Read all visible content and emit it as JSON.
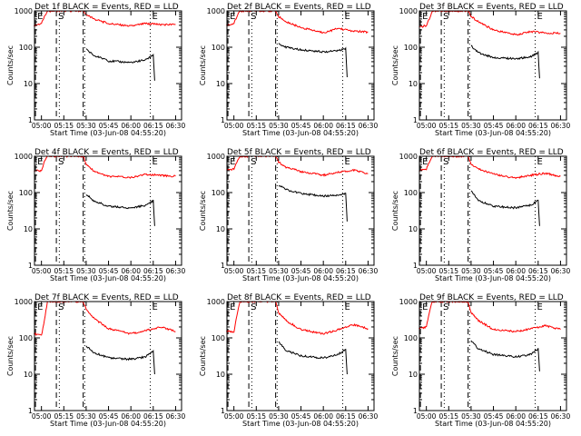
{
  "ylabel": "Counts/sec",
  "xlabel": "Start Time (03-Jun-08 04:55:20)",
  "x_ticks": [
    "05:00",
    "05:15",
    "05:30",
    "05:45",
    "06:00",
    "06:15",
    "06:30"
  ],
  "y_ticks": [
    "1",
    "10",
    "100",
    "1000"
  ],
  "colors": {
    "events": "#000000",
    "lld": "#ff0000",
    "frame": "#000000"
  },
  "chart_data": [
    {
      "type": "line",
      "title": "Det 1f BLACK = Events, RED = LLD",
      "xlim": [
        "04:55:20",
        "06:34"
      ],
      "ylim": [
        1,
        1000
      ],
      "yscale": "log",
      "markers": [
        {
          "label": "E",
          "time": "04:56",
          "style": "dashed"
        },
        {
          "label": "S",
          "time": "05:10",
          "style": "dashed"
        },
        {
          "label": "",
          "time": "05:28",
          "style": "dashed"
        },
        {
          "label": "",
          "time": "05:12",
          "style": "dotted"
        },
        {
          "label": "",
          "time": "05:29",
          "style": "dotted"
        },
        {
          "label": "E",
          "time": "06:13",
          "style": "dotted"
        }
      ],
      "series": [
        {
          "name": "LLD",
          "color": "#ff0000",
          "x": [
            "04:55",
            "05:00",
            "05:02",
            "05:04",
            "05:28",
            "05:30",
            "05:35",
            "05:45",
            "06:00",
            "06:10",
            "06:20",
            "06:30"
          ],
          "values": [
            400,
            450,
            700,
            1000,
            1000,
            800,
            600,
            450,
            380,
            450,
            420,
            420
          ]
        },
        {
          "name": "Events",
          "color": "#000000",
          "x": [
            "05:30",
            "05:31",
            "05:35",
            "05:45",
            "06:00",
            "06:10",
            "06:15",
            "06:16"
          ],
          "values": [
            90,
            85,
            60,
            42,
            38,
            45,
            60,
            12
          ]
        }
      ]
    },
    {
      "type": "line",
      "title": "Det 2f BLACK = Events, RED = LLD",
      "xlim": [
        "04:55:20",
        "06:34"
      ],
      "ylim": [
        1,
        1000
      ],
      "yscale": "log",
      "markers": [
        {
          "label": "E",
          "time": "04:56",
          "style": "dashed"
        },
        {
          "label": "S",
          "time": "05:10",
          "style": "dashed"
        },
        {
          "label": "",
          "time": "05:28",
          "style": "dashed"
        },
        {
          "label": "",
          "time": "05:12",
          "style": "dotted"
        },
        {
          "label": "",
          "time": "05:29",
          "style": "dotted"
        },
        {
          "label": "E",
          "time": "06:13",
          "style": "dotted"
        }
      ],
      "series": [
        {
          "name": "LLD",
          "color": "#ff0000",
          "x": [
            "04:55",
            "05:00",
            "05:02",
            "05:04",
            "05:28",
            "05:30",
            "05:35",
            "05:45",
            "06:00",
            "06:10",
            "06:20",
            "06:30"
          ],
          "values": [
            400,
            450,
            700,
            1000,
            1000,
            700,
            500,
            350,
            250,
            330,
            280,
            260
          ]
        },
        {
          "name": "Events",
          "color": "#000000",
          "x": [
            "05:30",
            "05:31",
            "05:35",
            "05:45",
            "06:00",
            "06:10",
            "06:15",
            "06:16"
          ],
          "values": [
            130,
            120,
            100,
            85,
            75,
            80,
            90,
            15
          ]
        }
      ]
    },
    {
      "type": "line",
      "title": "Det 3f BLACK = Events, RED = LLD",
      "xlim": [
        "04:55:20",
        "06:34"
      ],
      "ylim": [
        1,
        1000
      ],
      "yscale": "log",
      "markers": [
        {
          "label": "E",
          "time": "04:56",
          "style": "dashed"
        },
        {
          "label": "S",
          "time": "05:10",
          "style": "dashed"
        },
        {
          "label": "",
          "time": "05:28",
          "style": "dashed"
        },
        {
          "label": "",
          "time": "05:12",
          "style": "dotted"
        },
        {
          "label": "",
          "time": "05:29",
          "style": "dotted"
        },
        {
          "label": "E",
          "time": "06:13",
          "style": "dotted"
        }
      ],
      "series": [
        {
          "name": "LLD",
          "color": "#ff0000",
          "x": [
            "04:55",
            "05:00",
            "05:02",
            "05:04",
            "05:28",
            "05:30",
            "05:35",
            "05:45",
            "06:00",
            "06:10",
            "06:20",
            "06:30"
          ],
          "values": [
            350,
            400,
            600,
            1000,
            1000,
            700,
            500,
            300,
            220,
            270,
            250,
            240
          ]
        },
        {
          "name": "Events",
          "color": "#000000",
          "x": [
            "05:30",
            "05:31",
            "05:35",
            "05:45",
            "06:00",
            "06:10",
            "06:15",
            "06:16"
          ],
          "values": [
            110,
            100,
            70,
            52,
            48,
            55,
            70,
            14
          ]
        }
      ]
    },
    {
      "type": "line",
      "title": "Det 4f BLACK = Events, RED = LLD",
      "xlim": [
        "04:55:20",
        "06:34"
      ],
      "ylim": [
        1,
        1000
      ],
      "yscale": "log",
      "markers": [
        {
          "label": "E",
          "time": "04:56",
          "style": "dashed"
        },
        {
          "label": "S",
          "time": "05:10",
          "style": "dashed"
        },
        {
          "label": "",
          "time": "05:28",
          "style": "dashed"
        },
        {
          "label": "",
          "time": "05:12",
          "style": "dotted"
        },
        {
          "label": "",
          "time": "05:29",
          "style": "dotted"
        },
        {
          "label": "E",
          "time": "06:13",
          "style": "dotted"
        }
      ],
      "series": [
        {
          "name": "LLD",
          "color": "#ff0000",
          "x": [
            "04:55",
            "05:00",
            "05:02",
            "05:04",
            "05:28",
            "05:30",
            "05:35",
            "05:45",
            "06:00",
            "06:10",
            "06:20",
            "06:30"
          ],
          "values": [
            400,
            400,
            700,
            1000,
            1000,
            600,
            400,
            280,
            260,
            320,
            300,
            280
          ]
        },
        {
          "name": "Events",
          "color": "#000000",
          "x": [
            "05:30",
            "05:31",
            "05:35",
            "05:45",
            "06:00",
            "06:10",
            "06:15",
            "06:16"
          ],
          "values": [
            90,
            85,
            60,
            42,
            38,
            45,
            60,
            12
          ]
        }
      ]
    },
    {
      "type": "line",
      "title": "Det 5f BLACK = Events, RED = LLD",
      "xlim": [
        "04:55:20",
        "06:34"
      ],
      "ylim": [
        1,
        1000
      ],
      "yscale": "log",
      "markers": [
        {
          "label": "E",
          "time": "04:56",
          "style": "dashed"
        },
        {
          "label": "S",
          "time": "05:10",
          "style": "dashed"
        },
        {
          "label": "",
          "time": "05:28",
          "style": "dashed"
        },
        {
          "label": "",
          "time": "05:12",
          "style": "dotted"
        },
        {
          "label": "",
          "time": "05:29",
          "style": "dotted"
        },
        {
          "label": "E",
          "time": "06:13",
          "style": "dotted"
        }
      ],
      "series": [
        {
          "name": "LLD",
          "color": "#ff0000",
          "x": [
            "04:55",
            "05:00",
            "05:02",
            "05:04",
            "05:28",
            "05:30",
            "05:35",
            "05:45",
            "06:00",
            "06:10",
            "06:20",
            "06:30"
          ],
          "values": [
            400,
            450,
            700,
            1000,
            1000,
            700,
            500,
            380,
            300,
            360,
            420,
            330
          ]
        },
        {
          "name": "Events",
          "color": "#000000",
          "x": [
            "05:30",
            "05:31",
            "05:35",
            "05:45",
            "06:00",
            "06:10",
            "06:15",
            "06:16"
          ],
          "values": [
            160,
            150,
            120,
            95,
            80,
            85,
            95,
            16
          ]
        }
      ]
    },
    {
      "type": "line",
      "title": "Det 6f BLACK = Events, RED = LLD",
      "xlim": [
        "04:55:20",
        "06:34"
      ],
      "ylim": [
        1,
        1000
      ],
      "yscale": "log",
      "markers": [
        {
          "label": "E",
          "time": "04:56",
          "style": "dashed"
        },
        {
          "label": "S",
          "time": "05:10",
          "style": "dashed"
        },
        {
          "label": "",
          "time": "05:28",
          "style": "dashed"
        },
        {
          "label": "",
          "time": "05:12",
          "style": "dotted"
        },
        {
          "label": "",
          "time": "05:29",
          "style": "dotted"
        },
        {
          "label": "E",
          "time": "06:13",
          "style": "dotted"
        }
      ],
      "series": [
        {
          "name": "LLD",
          "color": "#ff0000",
          "x": [
            "04:55",
            "05:00",
            "05:02",
            "05:04",
            "05:28",
            "05:30",
            "05:35",
            "05:45",
            "06:00",
            "06:10",
            "06:20",
            "06:30"
          ],
          "values": [
            400,
            450,
            700,
            1000,
            1000,
            600,
            450,
            320,
            250,
            300,
            340,
            280
          ]
        },
        {
          "name": "Events",
          "color": "#000000",
          "x": [
            "05:30",
            "05:31",
            "05:35",
            "05:45",
            "06:00",
            "06:10",
            "06:15",
            "06:16"
          ],
          "values": [
            110,
            100,
            60,
            42,
            38,
            45,
            60,
            12
          ]
        }
      ]
    },
    {
      "type": "line",
      "title": "Det 7f BLACK = Events, RED = LLD",
      "xlim": [
        "04:55:20",
        "06:34"
      ],
      "ylim": [
        1,
        1000
      ],
      "yscale": "log",
      "markers": [
        {
          "label": "E",
          "time": "04:56",
          "style": "dashed"
        },
        {
          "label": "S",
          "time": "05:10",
          "style": "dashed"
        },
        {
          "label": "",
          "time": "05:28",
          "style": "dashed"
        },
        {
          "label": "",
          "time": "05:12",
          "style": "dotted"
        },
        {
          "label": "",
          "time": "05:29",
          "style": "dotted"
        },
        {
          "label": "E",
          "time": "06:13",
          "style": "dotted"
        }
      ],
      "series": [
        {
          "name": "LLD",
          "color": "#ff0000",
          "x": [
            "04:55",
            "05:00",
            "05:02",
            "05:04",
            "05:28",
            "05:30",
            "05:35",
            "05:45",
            "06:00",
            "06:10",
            "06:20",
            "06:30"
          ],
          "values": [
            130,
            120,
            300,
            1000,
            1000,
            600,
            350,
            180,
            130,
            160,
            200,
            150
          ]
        },
        {
          "name": "Events",
          "color": "#000000",
          "x": [
            "05:30",
            "05:31",
            "05:35",
            "05:45",
            "06:00",
            "06:10",
            "06:15",
            "06:16"
          ],
          "values": [
            60,
            55,
            40,
            28,
            26,
            30,
            45,
            10
          ]
        }
      ]
    },
    {
      "type": "line",
      "title": "Det 8f BLACK = Events, RED = LLD",
      "xlim": [
        "04:55:20",
        "06:34"
      ],
      "ylim": [
        1,
        1000
      ],
      "yscale": "log",
      "markers": [
        {
          "label": "E",
          "time": "04:56",
          "style": "dashed"
        },
        {
          "label": "S",
          "time": "05:10",
          "style": "dashed"
        },
        {
          "label": "",
          "time": "05:28",
          "style": "dashed"
        },
        {
          "label": "",
          "time": "05:12",
          "style": "dotted"
        },
        {
          "label": "",
          "time": "05:29",
          "style": "dotted"
        },
        {
          "label": "E",
          "time": "06:13",
          "style": "dotted"
        }
      ],
      "series": [
        {
          "name": "LLD",
          "color": "#ff0000",
          "x": [
            "04:55",
            "05:00",
            "05:02",
            "05:04",
            "05:28",
            "05:30",
            "05:35",
            "05:45",
            "06:00",
            "06:10",
            "06:20",
            "06:30"
          ],
          "values": [
            150,
            150,
            400,
            1000,
            1000,
            500,
            300,
            170,
            130,
            170,
            230,
            180
          ]
        },
        {
          "name": "Events",
          "color": "#000000",
          "x": [
            "05:30",
            "05:31",
            "05:35",
            "05:45",
            "06:00",
            "06:10",
            "06:15",
            "06:16"
          ],
          "values": [
            75,
            70,
            45,
            32,
            28,
            35,
            50,
            10
          ]
        }
      ]
    },
    {
      "type": "line",
      "title": "Det 9f BLACK = Events, RED = LLD",
      "xlim": [
        "04:55:20",
        "06:34"
      ],
      "ylim": [
        1,
        1000
      ],
      "yscale": "log",
      "markers": [
        {
          "label": "E",
          "time": "04:56",
          "style": "dashed"
        },
        {
          "label": "S",
          "time": "05:10",
          "style": "dashed"
        },
        {
          "label": "",
          "time": "05:28",
          "style": "dashed"
        },
        {
          "label": "",
          "time": "05:12",
          "style": "dotted"
        },
        {
          "label": "",
          "time": "05:29",
          "style": "dotted"
        },
        {
          "label": "E",
          "time": "06:13",
          "style": "dotted"
        }
      ],
      "series": [
        {
          "name": "LLD",
          "color": "#ff0000",
          "x": [
            "04:55",
            "05:00",
            "05:02",
            "05:04",
            "05:28",
            "05:30",
            "05:35",
            "05:45",
            "06:00",
            "06:10",
            "06:20",
            "06:30"
          ],
          "values": [
            180,
            200,
            500,
            1000,
            1000,
            500,
            300,
            170,
            150,
            180,
            220,
            170
          ]
        },
        {
          "name": "Events",
          "color": "#000000",
          "x": [
            "05:30",
            "05:31",
            "05:35",
            "05:45",
            "06:00",
            "06:10",
            "06:15",
            "06:16"
          ],
          "values": [
            80,
            75,
            50,
            35,
            30,
            35,
            50,
            12
          ]
        }
      ]
    }
  ]
}
